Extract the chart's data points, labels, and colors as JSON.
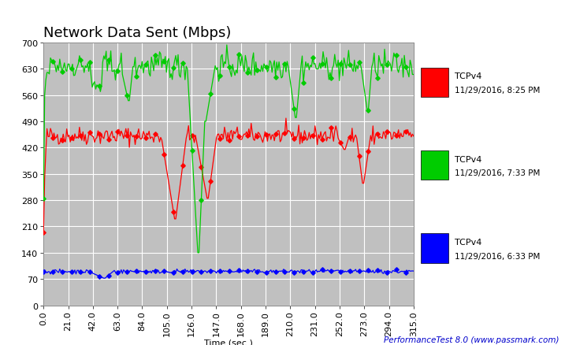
{
  "title": "Network Data Sent (Mbps)",
  "xlabel": "Time (sec.)",
  "bg_color": "#c0c0c0",
  "outer_bg_color": "#ffffff",
  "grid_color": "#ffffff",
  "ylim": [
    0,
    700
  ],
  "xlim": [
    0.0,
    315.0
  ],
  "yticks": [
    0,
    70,
    140,
    210,
    280,
    350,
    420,
    490,
    560,
    630,
    700
  ],
  "xticks": [
    0.0,
    21.0,
    42.0,
    63.0,
    84.0,
    105.0,
    126.0,
    147.0,
    168.0,
    189.0,
    210.0,
    231.0,
    252.0,
    273.0,
    294.0,
    315.0
  ],
  "legend": [
    {
      "label": "TCPv4\n11/29/2016, 8:25 PM",
      "color": "#ff0000"
    },
    {
      "label": "TCPv4\n11/29/2016, 7:33 PM",
      "color": "#00cc00"
    },
    {
      "label": "TCPv4\n11/29/2016, 6:33 PM",
      "color": "#0000ff"
    }
  ],
  "footer": "PerformanceTest 8.0 (www.passmark.com)",
  "title_fontsize": 13,
  "axis_fontsize": 8,
  "legend_fontsize": 8,
  "footer_fontsize": 7.5
}
